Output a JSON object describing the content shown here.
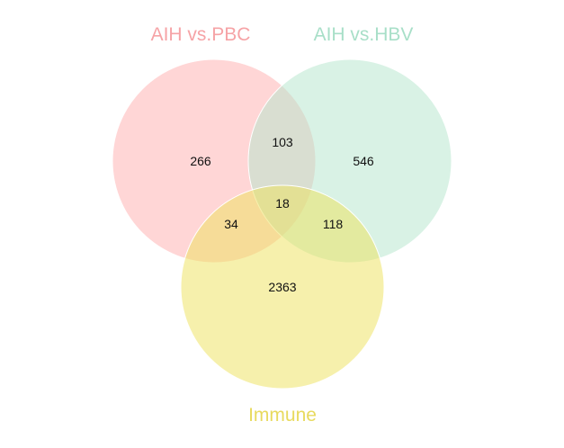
{
  "diagram": {
    "type": "venn3",
    "sets": [
      {
        "id": "A",
        "label": "AIH vs.PBC",
        "color": "#FFADAD",
        "label_color": "#F6A3A6"
      },
      {
        "id": "B",
        "label": "AIH vs.HBV",
        "color": "#B3E6CC",
        "label_color": "#A8DFC8"
      },
      {
        "id": "C",
        "label": "Immune",
        "color": "#EEE15A",
        "label_color": "#E8DA5E"
      }
    ],
    "regions": {
      "A_only": "266",
      "B_only": "546",
      "C_only": "2363",
      "AB_only": "103",
      "AC_only": "34",
      "BC_only": "118",
      "ABC": "18"
    },
    "circle_opacity": 0.5,
    "outline_color": "#FFFFFF"
  }
}
